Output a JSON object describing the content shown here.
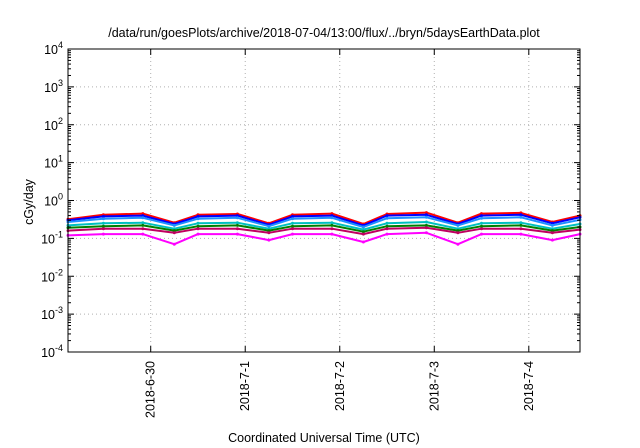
{
  "chart_data": {
    "type": "line",
    "title": "/data/run/goesPlots/archive/2018-07-04/13:00/flux/../bryn/5daysEarthData.plot",
    "xlabel": "Coordinated Universal Time (UTC)",
    "ylabel": "cGy/day",
    "yscale": "log",
    "ylim": [
      0.0001,
      10000
    ],
    "y_ticks": [
      {
        "value": 0.0001,
        "base": "10",
        "exp": "-4"
      },
      {
        "value": 0.001,
        "base": "10",
        "exp": "-3"
      },
      {
        "value": 0.01,
        "base": "10",
        "exp": "-2"
      },
      {
        "value": 0.1,
        "base": "10",
        "exp": "-1"
      },
      {
        "value": 1,
        "base": "10",
        "exp": "0"
      },
      {
        "value": 10,
        "base": "10",
        "exp": "1"
      },
      {
        "value": 100,
        "base": "10",
        "exp": "2"
      },
      {
        "value": 1000,
        "base": "10",
        "exp": "3"
      },
      {
        "value": 10000,
        "base": "10",
        "exp": "4"
      }
    ],
    "xlim": [
      "2018-06-29T03:00",
      "2018-07-04T13:00"
    ],
    "x_ticks": [
      "2018-6-30",
      "2018-7-1",
      "2018-7-2",
      "2018-7-3",
      "2018-7-4"
    ],
    "grid": true,
    "series": [
      {
        "color": "#ff0000",
        "x": [
          "2018-06-29T03:00",
          "2018-06-29T12:00",
          "2018-06-29T22:00",
          "2018-06-30T06:00",
          "2018-06-30T12:00",
          "2018-06-30T22:00",
          "2018-07-01T06:00",
          "2018-07-01T12:00",
          "2018-07-01T22:00",
          "2018-07-02T06:00",
          "2018-07-02T12:00",
          "2018-07-02T22:00",
          "2018-07-03T06:00",
          "2018-07-03T12:00",
          "2018-07-03T22:00",
          "2018-07-04T06:00",
          "2018-07-04T13:00"
        ],
        "y": [
          0.32,
          0.42,
          0.45,
          0.26,
          0.42,
          0.44,
          0.25,
          0.42,
          0.45,
          0.24,
          0.44,
          0.48,
          0.26,
          0.45,
          0.47,
          0.27,
          0.4
        ]
      },
      {
        "color": "#0000ff",
        "x": [
          "2018-06-29T03:00",
          "2018-06-29T12:00",
          "2018-06-29T22:00",
          "2018-06-30T06:00",
          "2018-06-30T12:00",
          "2018-06-30T22:00",
          "2018-07-01T06:00",
          "2018-07-01T12:00",
          "2018-07-01T22:00",
          "2018-07-02T06:00",
          "2018-07-02T12:00",
          "2018-07-02T22:00",
          "2018-07-03T06:00",
          "2018-07-03T12:00",
          "2018-07-03T22:00",
          "2018-07-04T06:00",
          "2018-07-04T13:00"
        ],
        "y": [
          0.3,
          0.38,
          0.4,
          0.24,
          0.38,
          0.4,
          0.23,
          0.38,
          0.4,
          0.22,
          0.4,
          0.42,
          0.24,
          0.4,
          0.42,
          0.25,
          0.36
        ]
      },
      {
        "color": "#1e90ff",
        "x": [
          "2018-06-29T03:00",
          "2018-06-29T12:00",
          "2018-06-29T22:00",
          "2018-06-30T06:00",
          "2018-06-30T12:00",
          "2018-06-30T22:00",
          "2018-07-01T06:00",
          "2018-07-01T12:00",
          "2018-07-01T22:00",
          "2018-07-02T06:00",
          "2018-07-02T12:00",
          "2018-07-02T22:00",
          "2018-07-03T06:00",
          "2018-07-03T12:00",
          "2018-07-03T22:00",
          "2018-07-04T06:00",
          "2018-07-04T13:00"
        ],
        "y": [
          0.27,
          0.33,
          0.35,
          0.22,
          0.33,
          0.35,
          0.21,
          0.33,
          0.35,
          0.2,
          0.34,
          0.36,
          0.22,
          0.34,
          0.36,
          0.22,
          0.31
        ]
      },
      {
        "color": "#00c0c0",
        "x": [
          "2018-06-29T03:00",
          "2018-06-29T12:00",
          "2018-06-29T22:00",
          "2018-06-30T06:00",
          "2018-06-30T12:00",
          "2018-06-30T22:00",
          "2018-07-01T06:00",
          "2018-07-01T12:00",
          "2018-07-01T22:00",
          "2018-07-02T06:00",
          "2018-07-02T12:00",
          "2018-07-02T22:00",
          "2018-07-03T06:00",
          "2018-07-03T12:00",
          "2018-07-03T22:00",
          "2018-07-04T06:00",
          "2018-07-04T13:00"
        ],
        "y": [
          0.22,
          0.25,
          0.26,
          0.18,
          0.25,
          0.26,
          0.18,
          0.25,
          0.26,
          0.17,
          0.25,
          0.27,
          0.18,
          0.25,
          0.26,
          0.18,
          0.24
        ]
      },
      {
        "color": "#008000",
        "x": [
          "2018-06-29T03:00",
          "2018-06-29T12:00",
          "2018-06-29T22:00",
          "2018-06-30T06:00",
          "2018-06-30T12:00",
          "2018-06-30T22:00",
          "2018-07-01T06:00",
          "2018-07-01T12:00",
          "2018-07-01T22:00",
          "2018-07-02T06:00",
          "2018-07-02T12:00",
          "2018-07-02T22:00",
          "2018-07-03T06:00",
          "2018-07-03T12:00",
          "2018-07-03T22:00",
          "2018-07-04T06:00",
          "2018-07-04T13:00"
        ],
        "y": [
          0.19,
          0.21,
          0.22,
          0.16,
          0.21,
          0.22,
          0.16,
          0.21,
          0.22,
          0.15,
          0.21,
          0.22,
          0.16,
          0.21,
          0.22,
          0.16,
          0.2
        ]
      },
      {
        "color": "#c00060",
        "x": [
          "2018-06-29T03:00",
          "2018-06-29T12:00",
          "2018-06-29T22:00",
          "2018-06-30T06:00",
          "2018-06-30T12:00",
          "2018-06-30T22:00",
          "2018-07-01T06:00",
          "2018-07-01T12:00",
          "2018-07-01T22:00",
          "2018-07-02T06:00",
          "2018-07-02T12:00",
          "2018-07-02T22:00",
          "2018-07-03T06:00",
          "2018-07-03T12:00",
          "2018-07-03T22:00",
          "2018-07-04T06:00",
          "2018-07-04T13:00"
        ],
        "y": [
          0.16,
          0.18,
          0.18,
          0.14,
          0.18,
          0.18,
          0.14,
          0.18,
          0.18,
          0.13,
          0.18,
          0.19,
          0.14,
          0.18,
          0.18,
          0.14,
          0.17
        ]
      },
      {
        "color": "#ff00ff",
        "x": [
          "2018-06-29T03:00",
          "2018-06-29T12:00",
          "2018-06-29T22:00",
          "2018-06-30T06:00",
          "2018-06-30T12:00",
          "2018-06-30T22:00",
          "2018-07-01T06:00",
          "2018-07-01T12:00",
          "2018-07-01T22:00",
          "2018-07-02T06:00",
          "2018-07-02T12:00",
          "2018-07-02T22:00",
          "2018-07-03T06:00",
          "2018-07-03T12:00",
          "2018-07-03T22:00",
          "2018-07-04T06:00",
          "2018-07-04T13:00"
        ],
        "y": [
          0.12,
          0.13,
          0.13,
          0.07,
          0.13,
          0.13,
          0.09,
          0.13,
          0.13,
          0.08,
          0.13,
          0.14,
          0.07,
          0.13,
          0.13,
          0.09,
          0.13
        ]
      }
    ]
  }
}
